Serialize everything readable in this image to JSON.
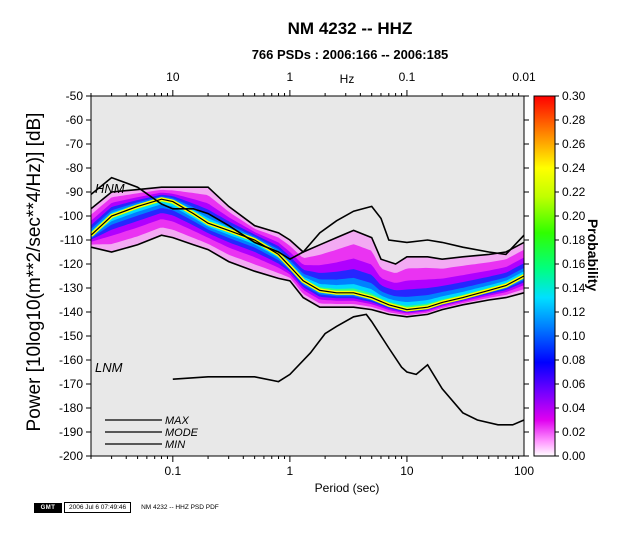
{
  "header": {
    "title": "NM 4232 -- HHZ",
    "subtitle": "766 PSDs : 2006:166 -- 2006:185"
  },
  "axes": {
    "ylabel": "Power [10log10(m**2/sec**4/Hz)] [dB]",
    "xlabel": "Period (sec)",
    "top_unit": "Hz",
    "colorbar_label": "Probability"
  },
  "noise_models": {
    "high": "HNM",
    "low": "LNM"
  },
  "legend": {
    "max": "MAX",
    "mode": "MODE",
    "min": "MIN"
  },
  "footer": {
    "logo": "GMT",
    "timestamp": "2006 Jul  6 07:49:46",
    "caption": "NM 4232 -- HHZ PSD PDF"
  },
  "colors": {
    "max_label": "#0000ff",
    "mode_label": "#000000",
    "min_label": "#ff0000",
    "noise_model_label": "#808080",
    "background_density": "#e8e8e8"
  },
  "chart_data": {
    "type": "heatmap",
    "x_scale": "log",
    "xlim": [
      0.02,
      100
    ],
    "ylim": [
      -200,
      -50
    ],
    "x_ticks": [
      0.1,
      1,
      10,
      100
    ],
    "x_tick_labels": [
      "0.1",
      "1",
      "10",
      "100"
    ],
    "top_ticks": [
      10,
      1,
      0.1,
      0.01
    ],
    "top_tick_labels": [
      "10",
      "1",
      "0.1",
      "0.01"
    ],
    "y_ticks": [
      -50,
      -60,
      -70,
      -80,
      -90,
      -100,
      -110,
      -120,
      -130,
      -140,
      -150,
      -160,
      -170,
      -180,
      -190,
      -200
    ],
    "colorbar": {
      "range": [
        0,
        0.3
      ],
      "ticks": [
        0.0,
        0.02,
        0.04,
        0.06,
        0.08,
        0.1,
        0.12,
        0.14,
        0.16,
        0.18,
        0.2,
        0.22,
        0.24,
        0.26,
        0.28,
        0.3
      ],
      "tick_labels": [
        "0.00",
        "0.02",
        "0.04",
        "0.06",
        "0.08",
        "0.10",
        "0.12",
        "0.14",
        "0.16",
        "0.18",
        "0.20",
        "0.22",
        "0.24",
        "0.26",
        "0.28",
        "0.30"
      ]
    },
    "series": [
      {
        "name": "MODE",
        "x": [
          0.02,
          0.03,
          0.05,
          0.08,
          0.1,
          0.15,
          0.2,
          0.3,
          0.5,
          0.8,
          1,
          1.3,
          1.8,
          2.5,
          3.5,
          5,
          7,
          10,
          15,
          20,
          30,
          50,
          70,
          100
        ],
        "y": [
          -108,
          -100,
          -96,
          -93,
          -94,
          -99,
          -103,
          -106,
          -110,
          -116,
          -121,
          -127,
          -131,
          -132,
          -132,
          -134,
          -137,
          -139,
          -138,
          -136,
          -134,
          -131,
          -129,
          -125
        ]
      },
      {
        "name": "HNM",
        "x": [
          0.02,
          0.03,
          0.05,
          0.08,
          0.1,
          0.15,
          0.2,
          0.3,
          0.5,
          0.8,
          1,
          1.3,
          1.8,
          2.5,
          3.5,
          5,
          6,
          7,
          10,
          15,
          20,
          30,
          50,
          70,
          100
        ],
        "y": [
          -91,
          -84,
          -88,
          -95,
          -97,
          -97,
          -99,
          -104,
          -111,
          -115,
          -118,
          -115,
          -107,
          -102,
          -98,
          -96,
          -101,
          -110,
          -111,
          -110,
          -111,
          -113,
          -115,
          -116,
          -108
        ]
      },
      {
        "name": "LNM",
        "x": [
          0.1,
          0.2,
          0.3,
          0.5,
          0.8,
          1,
          1.5,
          2,
          2.5,
          3.5,
          4.5,
          5,
          7,
          9,
          10,
          12,
          15,
          20,
          30,
          40,
          60,
          80,
          100
        ],
        "y": [
          -168,
          -167,
          -167,
          -167,
          -169,
          -166,
          -157,
          -149,
          -146,
          -142,
          -141,
          -144,
          -155,
          -163,
          -165,
          -166,
          -162,
          -172,
          -182,
          -185,
          -187,
          -187,
          -185
        ]
      },
      {
        "name": "MAX",
        "x": [
          0.02,
          0.03,
          0.05,
          0.08,
          0.1,
          0.15,
          0.2,
          0.3,
          0.5,
          0.8,
          1,
          1.3,
          1.8,
          2.5,
          3.5,
          5,
          6,
          8,
          10,
          15,
          20,
          30,
          50,
          70,
          100
        ],
        "y": [
          -97,
          -90,
          -89,
          -88,
          -88,
          -88,
          -88,
          -96,
          -104,
          -107,
          -110,
          -115,
          -112,
          -109,
          -106,
          -109,
          -118,
          -120,
          -117,
          -117,
          -118,
          -117,
          -116,
          -115,
          -111
        ]
      },
      {
        "name": "MIN",
        "x": [
          0.02,
          0.03,
          0.05,
          0.08,
          0.1,
          0.15,
          0.2,
          0.3,
          0.5,
          0.8,
          1,
          1.3,
          1.8,
          2.5,
          3.5,
          5,
          7,
          10,
          15,
          20,
          30,
          50,
          70,
          100
        ],
        "y": [
          -113,
          -115,
          -112,
          -108,
          -109,
          -112,
          -114,
          -119,
          -123,
          -126,
          -127,
          -134,
          -138,
          -138,
          -138,
          -139,
          -141,
          -142,
          -141,
          -139,
          -137,
          -135,
          -134,
          -132
        ]
      }
    ]
  }
}
